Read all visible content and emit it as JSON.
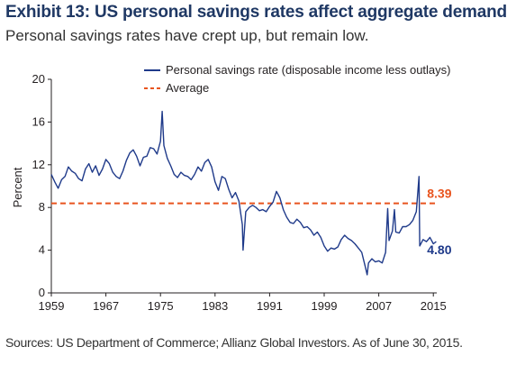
{
  "title": "Exhibit 13: US personal savings rates affect aggregate demand",
  "subtitle": "Personal savings rates have crept up, but remain low.",
  "source": "Sources: US Department of Commerce; Allianz Global Investors. As of June 30, 2015.",
  "colors": {
    "series": "#1f3a8a",
    "average": "#e8541e",
    "title": "#1f3864"
  },
  "chart_data": {
    "type": "line",
    "title": "Exhibit 13: US personal savings rates affect aggregate demand",
    "subtitle": "Personal savings rates have crept up, but remain low.",
    "xlabel": "",
    "ylabel": "Percent",
    "xlim": [
      1959,
      2015.5
    ],
    "ylim": [
      0,
      20
    ],
    "x_ticks": [
      "1959",
      "1967",
      "1975",
      "1983",
      "1991",
      "1999",
      "2007",
      "2015"
    ],
    "y_ticks": [
      "0",
      "4",
      "8",
      "12",
      "16",
      "20"
    ],
    "grid": false,
    "legend_position": "top-right",
    "series": [
      {
        "name": "Personal savings rate (disposable income less outlays)",
        "color": "#1f3a8a",
        "points": [
          [
            1959.0,
            11.1
          ],
          [
            1959.5,
            10.4
          ],
          [
            1960.0,
            9.8
          ],
          [
            1960.5,
            10.6
          ],
          [
            1961.0,
            10.9
          ],
          [
            1961.5,
            11.8
          ],
          [
            1962.0,
            11.4
          ],
          [
            1962.5,
            11.2
          ],
          [
            1963.0,
            10.7
          ],
          [
            1963.5,
            10.5
          ],
          [
            1964.0,
            11.6
          ],
          [
            1964.5,
            12.1
          ],
          [
            1965.0,
            11.3
          ],
          [
            1965.5,
            11.9
          ],
          [
            1966.0,
            11.0
          ],
          [
            1966.5,
            11.6
          ],
          [
            1967.0,
            12.5
          ],
          [
            1967.5,
            12.1
          ],
          [
            1968.0,
            11.3
          ],
          [
            1968.5,
            10.9
          ],
          [
            1969.0,
            10.7
          ],
          [
            1969.5,
            11.4
          ],
          [
            1970.0,
            12.4
          ],
          [
            1970.5,
            13.1
          ],
          [
            1971.0,
            13.4
          ],
          [
            1971.5,
            12.8
          ],
          [
            1972.0,
            11.9
          ],
          [
            1972.5,
            12.7
          ],
          [
            1973.0,
            12.8
          ],
          [
            1973.5,
            13.6
          ],
          [
            1974.0,
            13.5
          ],
          [
            1974.5,
            13.0
          ],
          [
            1975.0,
            14.2
          ],
          [
            1975.25,
            17.0
          ],
          [
            1975.5,
            13.8
          ],
          [
            1976.0,
            12.6
          ],
          [
            1976.5,
            11.9
          ],
          [
            1977.0,
            11.1
          ],
          [
            1977.5,
            10.8
          ],
          [
            1978.0,
            11.3
          ],
          [
            1978.5,
            11.0
          ],
          [
            1979.0,
            10.9
          ],
          [
            1979.5,
            10.6
          ],
          [
            1980.0,
            11.1
          ],
          [
            1980.5,
            11.8
          ],
          [
            1981.0,
            11.4
          ],
          [
            1981.5,
            12.2
          ],
          [
            1982.0,
            12.5
          ],
          [
            1982.5,
            11.8
          ],
          [
            1983.0,
            10.4
          ],
          [
            1983.5,
            9.6
          ],
          [
            1984.0,
            10.9
          ],
          [
            1984.5,
            10.7
          ],
          [
            1985.0,
            9.7
          ],
          [
            1985.5,
            8.9
          ],
          [
            1986.0,
            9.4
          ],
          [
            1986.5,
            8.6
          ],
          [
            1987.0,
            6.4
          ],
          [
            1987.1,
            4.0
          ],
          [
            1987.5,
            7.6
          ],
          [
            1988.0,
            8.0
          ],
          [
            1988.5,
            8.2
          ],
          [
            1989.0,
            8.0
          ],
          [
            1989.5,
            7.7
          ],
          [
            1990.0,
            7.8
          ],
          [
            1990.5,
            7.6
          ],
          [
            1991.0,
            8.1
          ],
          [
            1991.5,
            8.5
          ],
          [
            1992.0,
            9.5
          ],
          [
            1992.5,
            8.9
          ],
          [
            1993.0,
            7.8
          ],
          [
            1993.5,
            7.1
          ],
          [
            1994.0,
            6.6
          ],
          [
            1994.5,
            6.5
          ],
          [
            1995.0,
            6.9
          ],
          [
            1995.5,
            6.6
          ],
          [
            1996.0,
            6.1
          ],
          [
            1996.5,
            6.2
          ],
          [
            1997.0,
            5.9
          ],
          [
            1997.5,
            5.4
          ],
          [
            1998.0,
            5.7
          ],
          [
            1998.5,
            5.2
          ],
          [
            1999.0,
            4.4
          ],
          [
            1999.5,
            3.9
          ],
          [
            2000.0,
            4.2
          ],
          [
            2000.5,
            4.1
          ],
          [
            2001.0,
            4.3
          ],
          [
            2001.5,
            5.0
          ],
          [
            2002.0,
            5.4
          ],
          [
            2002.5,
            5.1
          ],
          [
            2003.0,
            4.9
          ],
          [
            2003.5,
            4.6
          ],
          [
            2004.0,
            4.2
          ],
          [
            2004.5,
            3.8
          ],
          [
            2005.0,
            2.5
          ],
          [
            2005.3,
            1.7
          ],
          [
            2005.5,
            2.8
          ],
          [
            2006.0,
            3.2
          ],
          [
            2006.5,
            2.9
          ],
          [
            2007.0,
            3.0
          ],
          [
            2007.5,
            2.8
          ],
          [
            2008.0,
            3.8
          ],
          [
            2008.3,
            7.9
          ],
          [
            2008.5,
            4.9
          ],
          [
            2009.0,
            5.8
          ],
          [
            2009.3,
            7.8
          ],
          [
            2009.5,
            5.7
          ],
          [
            2010.0,
            5.6
          ],
          [
            2010.5,
            6.2
          ],
          [
            2011.0,
            6.2
          ],
          [
            2011.5,
            6.4
          ],
          [
            2012.0,
            6.8
          ],
          [
            2012.5,
            7.6
          ],
          [
            2012.9,
            10.9
          ],
          [
            2013.0,
            4.4
          ],
          [
            2013.5,
            5.0
          ],
          [
            2014.0,
            4.8
          ],
          [
            2014.5,
            5.2
          ],
          [
            2015.0,
            4.6
          ],
          [
            2015.42,
            4.8
          ]
        ]
      },
      {
        "name": "Average",
        "color": "#e8541e",
        "style": "dashed",
        "value": 8.39
      }
    ],
    "annotations": [
      {
        "text": "8.39",
        "color": "#e8541e",
        "x": 2015.4,
        "y": 8.39
      },
      {
        "text": "4.80",
        "color": "#1f3a8a",
        "x": 2015.4,
        "y": 4.8
      }
    ]
  }
}
